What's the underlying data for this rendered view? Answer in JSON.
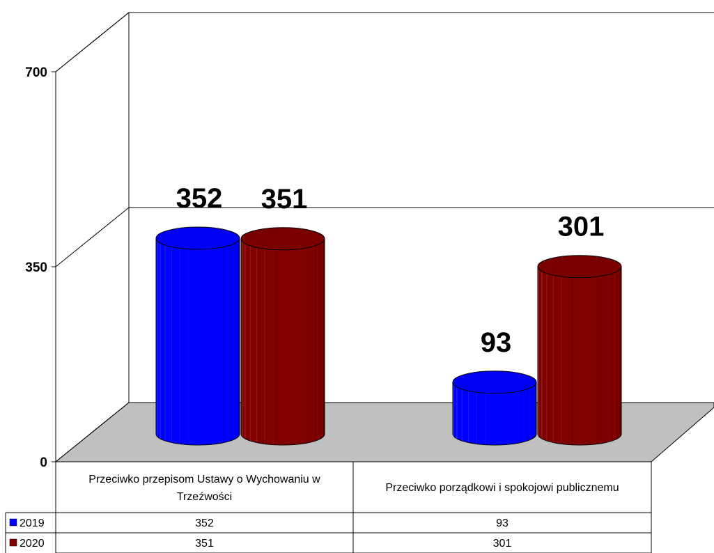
{
  "chart_data": {
    "type": "bar",
    "categories": [
      "Przeciwko przepisom Ustawy o Wychowaniu w Trzeźwości",
      "Przeciwko porządkowi i spokojowi publicznemu"
    ],
    "series": [
      {
        "name": "2019",
        "values": [
          352,
          93
        ],
        "color": "#0000ff"
      },
      {
        "name": "2020",
        "values": [
          351,
          301
        ],
        "color": "#800000"
      }
    ],
    "ylim": [
      0,
      700
    ],
    "yticks": [
      "0",
      "350",
      "700"
    ],
    "data_labels": [
      [
        "352",
        "93"
      ],
      [
        "351",
        "301"
      ]
    ],
    "grid": true,
    "legend": "data-table",
    "floor_color": "#c0c0c0",
    "title": "",
    "xlabel": "",
    "ylabel": ""
  }
}
